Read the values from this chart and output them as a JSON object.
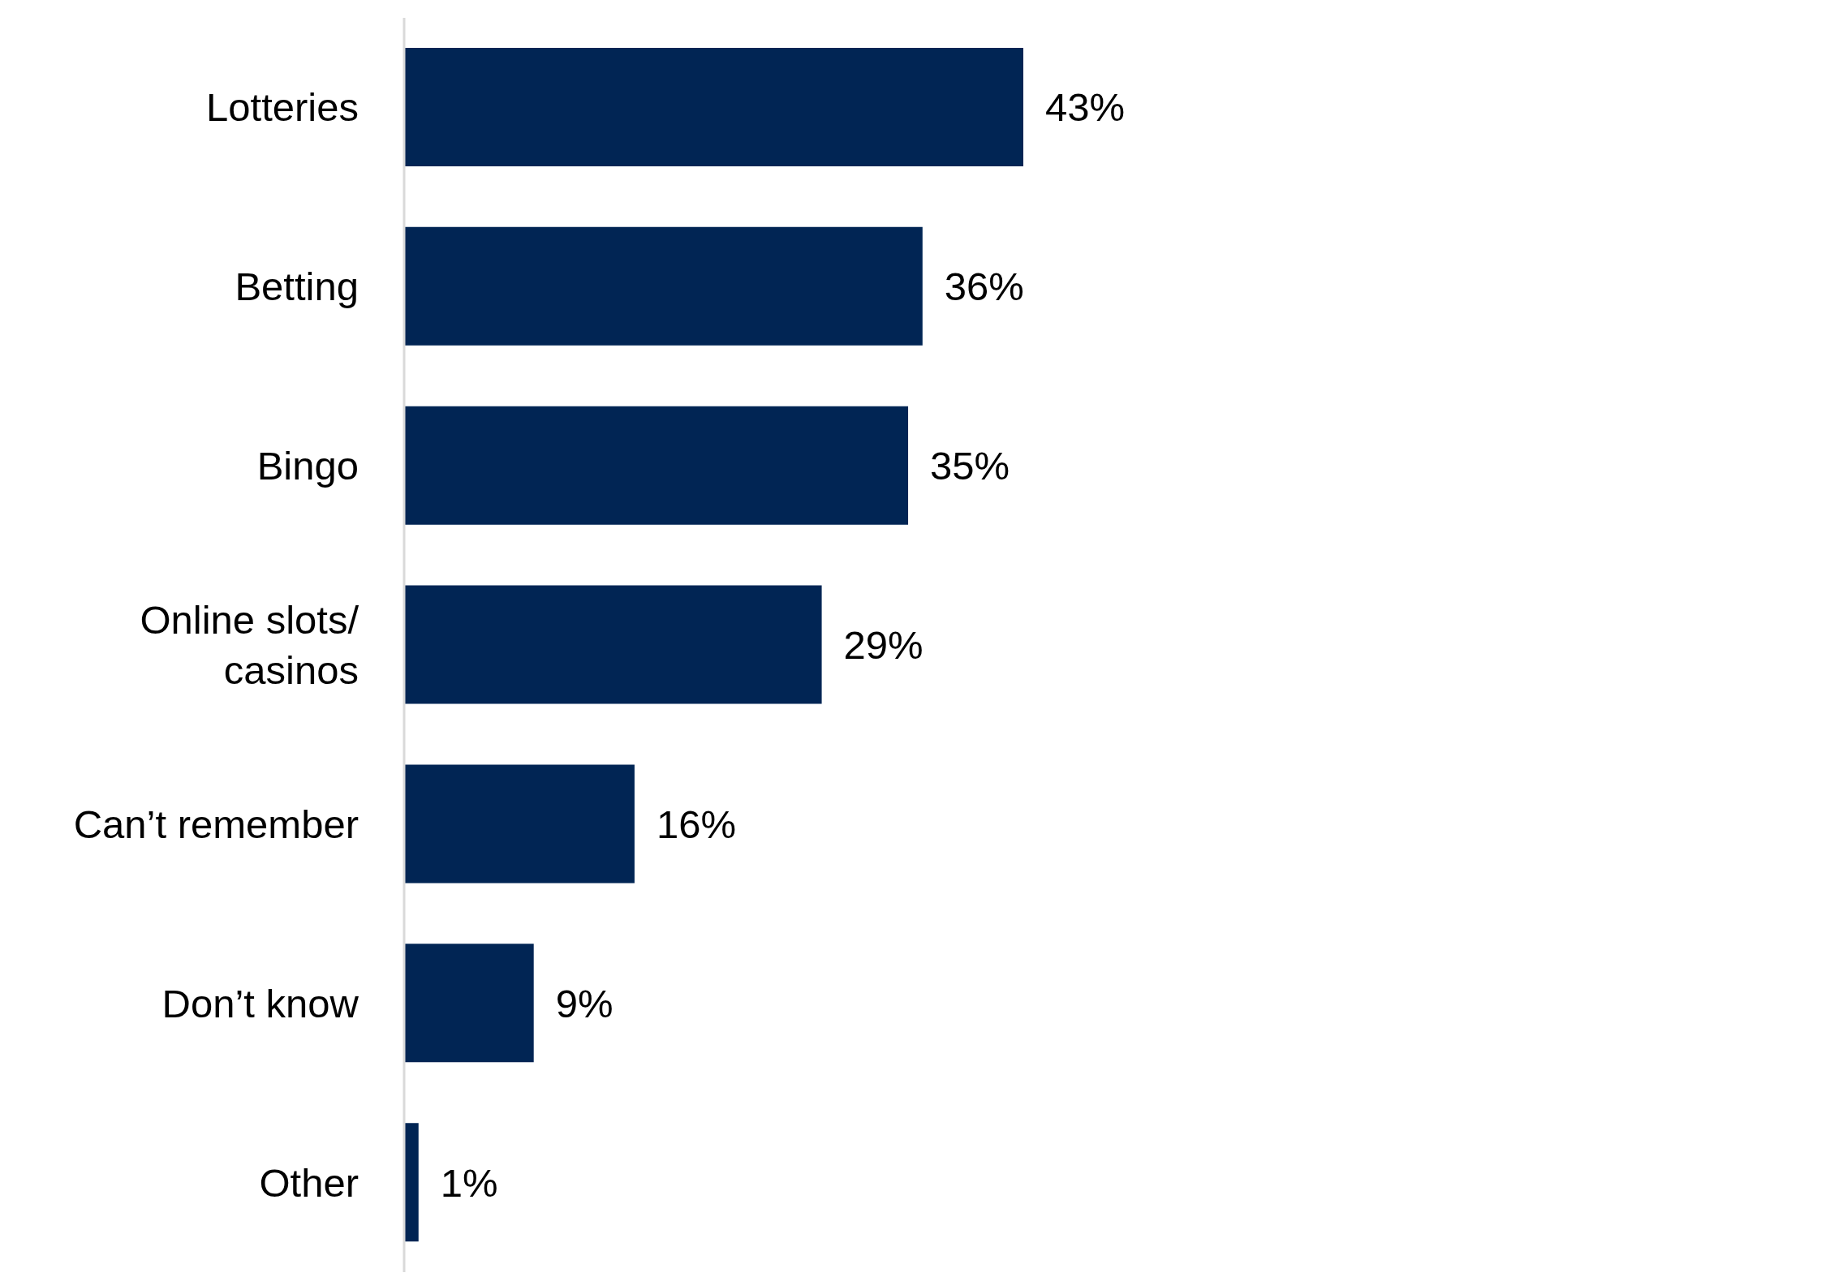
{
  "chart_data": {
    "type": "bar",
    "orientation": "horizontal",
    "categories": [
      "Lotteries",
      "Betting",
      "Bingo",
      "Online slots/ casinos",
      "Can’t remember",
      "Don’t know",
      "Other"
    ],
    "values": [
      43,
      36,
      35,
      29,
      16,
      9,
      1
    ],
    "value_labels": [
      "43%",
      "36%",
      "35%",
      "29%",
      "16%",
      "9%",
      "1%"
    ],
    "color": "#012554"
  }
}
